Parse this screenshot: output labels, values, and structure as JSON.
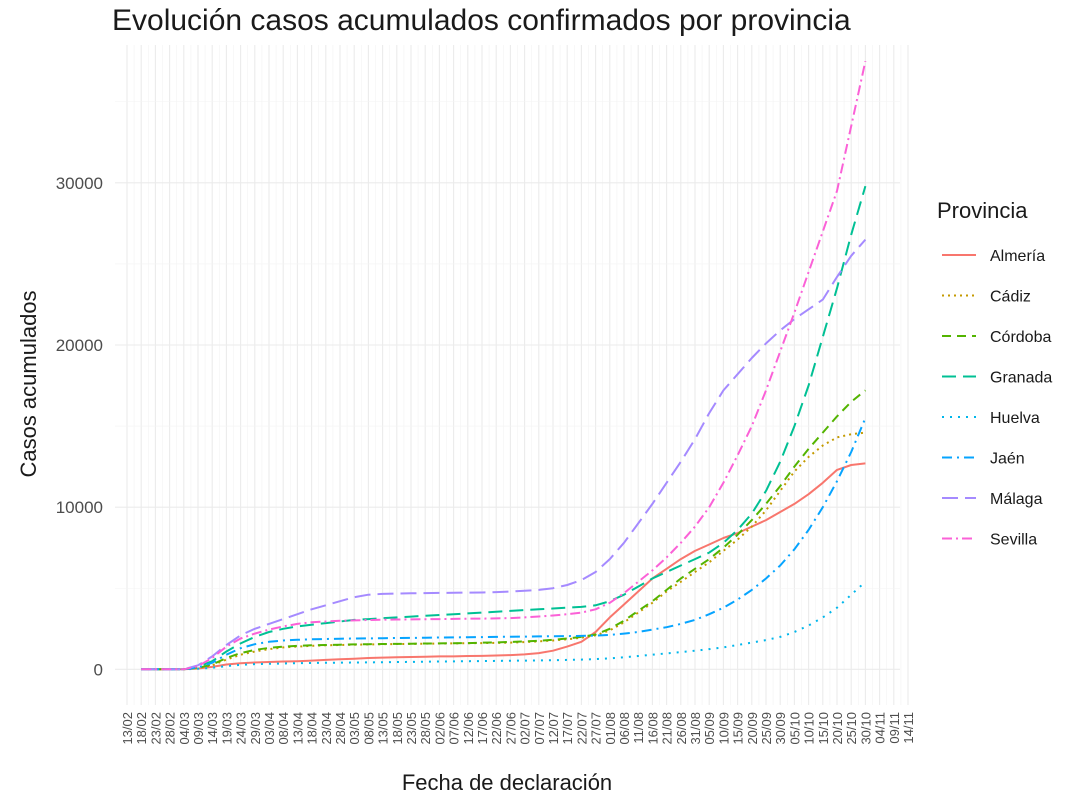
{
  "chart_data": {
    "type": "line",
    "title": "Evolución casos acumulados confirmados por provincia",
    "xlabel": "Fecha de declaración",
    "ylabel": "Casos acumulados",
    "legend_title": "Provincia",
    "legend_position": "right",
    "grid": true,
    "ylim": [
      -2200,
      38500
    ],
    "y_ticks": [
      0,
      10000,
      20000,
      30000
    ],
    "x_tick_labels": [
      "13/02",
      "18/02",
      "23/02",
      "28/02",
      "04/03",
      "09/03",
      "14/03",
      "19/03",
      "24/03",
      "29/03",
      "03/04",
      "08/04",
      "13/04",
      "18/04",
      "23/04",
      "28/04",
      "03/05",
      "08/05",
      "13/05",
      "18/05",
      "23/05",
      "28/05",
      "02/06",
      "07/06",
      "12/06",
      "17/06",
      "22/06",
      "27/06",
      "02/07",
      "07/07",
      "12/07",
      "17/07",
      "22/07",
      "27/07",
      "01/08",
      "06/08",
      "11/08",
      "16/08",
      "21/08",
      "26/08",
      "31/08",
      "05/09",
      "10/09",
      "15/09",
      "20/09",
      "25/09",
      "30/09",
      "05/10",
      "10/10",
      "15/10",
      "20/10",
      "25/10",
      "30/10",
      "04/11",
      "09/11",
      "14/11"
    ],
    "x": [
      "18/02",
      "23/02",
      "28/02",
      "04/03",
      "09/03",
      "14/03",
      "19/03",
      "24/03",
      "29/03",
      "03/04",
      "08/04",
      "13/04",
      "18/04",
      "23/04",
      "28/04",
      "03/05",
      "08/05",
      "13/05",
      "18/05",
      "23/05",
      "28/05",
      "02/06",
      "07/06",
      "12/06",
      "17/06",
      "22/06",
      "27/06",
      "02/07",
      "07/07",
      "12/07",
      "17/07",
      "22/07",
      "27/07",
      "01/08",
      "06/08",
      "11/08",
      "16/08",
      "21/08",
      "26/08",
      "31/08",
      "05/09",
      "10/09",
      "15/09",
      "20/09",
      "25/09",
      "30/09",
      "05/10",
      "10/10",
      "15/10",
      "20/10",
      "25/10",
      "30/10"
    ],
    "series": [
      {
        "name": "Almería",
        "color": "#F8766D",
        "dash": "solid",
        "values": [
          0,
          0,
          0,
          0,
          50,
          150,
          300,
          380,
          420,
          450,
          480,
          500,
          540,
          580,
          620,
          650,
          700,
          720,
          740,
          760,
          780,
          800,
          800,
          820,
          830,
          850,
          880,
          920,
          1000,
          1150,
          1400,
          1700,
          2300,
          3200,
          4000,
          4800,
          5600,
          6200,
          6800,
          7300,
          7700,
          8100,
          8400,
          8800,
          9200,
          9700,
          10200,
          10800,
          11500,
          12300,
          12600,
          12700
        ]
      },
      {
        "name": "Cádiz",
        "color": "#C49A00",
        "dash": "2,4",
        "values": [
          0,
          0,
          0,
          0,
          80,
          250,
          600,
          900,
          1100,
          1250,
          1350,
          1400,
          1450,
          1480,
          1500,
          1520,
          1540,
          1550,
          1560,
          1570,
          1580,
          1590,
          1600,
          1610,
          1620,
          1630,
          1650,
          1680,
          1720,
          1780,
          1850,
          1950,
          2100,
          2400,
          2900,
          3500,
          4100,
          4800,
          5400,
          6000,
          6600,
          7300,
          8000,
          8800,
          9800,
          11000,
          12200,
          13100,
          13800,
          14300,
          14500,
          14600
        ]
      },
      {
        "name": "Córdoba",
        "color": "#53B400",
        "dash": "9,6",
        "values": [
          0,
          0,
          0,
          0,
          90,
          300,
          700,
          1000,
          1200,
          1320,
          1400,
          1450,
          1480,
          1500,
          1520,
          1540,
          1550,
          1560,
          1570,
          1580,
          1590,
          1600,
          1610,
          1620,
          1640,
          1660,
          1690,
          1720,
          1760,
          1820,
          1900,
          2000,
          2150,
          2500,
          3000,
          3600,
          4200,
          4900,
          5600,
          6200,
          6800,
          7500,
          8300,
          9200,
          10200,
          11300,
          12500,
          13600,
          14600,
          15600,
          16500,
          17200
        ]
      },
      {
        "name": "Granada",
        "color": "#00C094",
        "dash": "14,7",
        "values": [
          0,
          0,
          0,
          0,
          150,
          500,
          1100,
          1600,
          2000,
          2300,
          2500,
          2650,
          2750,
          2850,
          2950,
          3050,
          3100,
          3150,
          3200,
          3250,
          3300,
          3350,
          3400,
          3450,
          3500,
          3550,
          3600,
          3650,
          3700,
          3750,
          3800,
          3850,
          3950,
          4200,
          4600,
          5100,
          5600,
          6000,
          6400,
          6800,
          7200,
          7800,
          8600,
          9600,
          11000,
          12800,
          15000,
          17500,
          20500,
          23500,
          26800,
          29800
        ]
      },
      {
        "name": "Huelva",
        "color": "#00B6EB",
        "dash": "2,6",
        "values": [
          0,
          0,
          0,
          0,
          30,
          100,
          200,
          280,
          320,
          340,
          360,
          380,
          390,
          400,
          410,
          420,
          430,
          440,
          450,
          460,
          470,
          480,
          490,
          500,
          510,
          520,
          530,
          540,
          550,
          560,
          580,
          600,
          630,
          680,
          740,
          820,
          900,
          980,
          1060,
          1150,
          1250,
          1350,
          1500,
          1650,
          1800,
          2000,
          2300,
          2700,
          3200,
          3800,
          4600,
          5400
        ]
      },
      {
        "name": "Jaén",
        "color": "#06A4FF",
        "dash": "10,5,2,5",
        "values": [
          0,
          0,
          0,
          0,
          120,
          400,
          900,
          1300,
          1550,
          1700,
          1780,
          1820,
          1850,
          1870,
          1890,
          1900,
          1910,
          1920,
          1930,
          1940,
          1950,
          1960,
          1970,
          1980,
          1990,
          2000,
          2010,
          2020,
          2030,
          2040,
          2050,
          2060,
          2080,
          2120,
          2200,
          2300,
          2450,
          2600,
          2800,
          3050,
          3400,
          3800,
          4300,
          4900,
          5600,
          6400,
          7400,
          8600,
          10000,
          11600,
          13400,
          15500
        ]
      },
      {
        "name": "Málaga",
        "color": "#A58AFF",
        "dash": "16,7",
        "values": [
          0,
          0,
          0,
          0,
          250,
          800,
          1500,
          2100,
          2500,
          2800,
          3100,
          3400,
          3700,
          3950,
          4200,
          4450,
          4600,
          4650,
          4670,
          4690,
          4700,
          4710,
          4720,
          4730,
          4740,
          4760,
          4800,
          4850,
          4900,
          5000,
          5200,
          5500,
          6000,
          6800,
          7800,
          9000,
          10200,
          11500,
          12800,
          14200,
          15800,
          17200,
          18200,
          19200,
          20100,
          20900,
          21600,
          22200,
          22800,
          24200,
          25500,
          26500
        ]
      },
      {
        "name": "Sevilla",
        "color": "#FB61D7",
        "dash": "10,4,2,4",
        "values": [
          0,
          0,
          0,
          0,
          200,
          700,
          1400,
          1900,
          2200,
          2450,
          2650,
          2800,
          2900,
          2950,
          3000,
          3020,
          3040,
          3060,
          3070,
          3080,
          3090,
          3100,
          3110,
          3120,
          3130,
          3140,
          3160,
          3200,
          3260,
          3320,
          3400,
          3500,
          3700,
          4100,
          4700,
          5400,
          6100,
          6900,
          7800,
          8800,
          10000,
          11500,
          13200,
          15000,
          17200,
          19600,
          22000,
          24500,
          27000,
          29500,
          33500,
          37500
        ]
      }
    ]
  }
}
